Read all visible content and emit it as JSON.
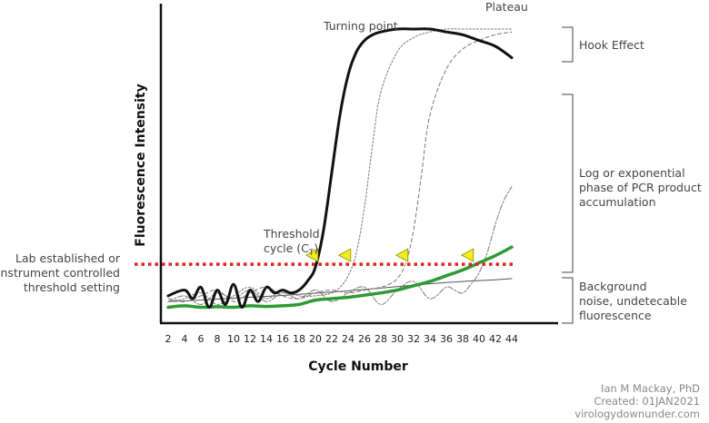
{
  "chart_data": {
    "type": "line",
    "xlabel": "Cycle Number",
    "ylabel": "Fluorescence Intensity",
    "x_ticks": [
      2,
      4,
      6,
      8,
      10,
      12,
      14,
      16,
      18,
      20,
      22,
      24,
      26,
      28,
      30,
      32,
      34,
      36,
      38,
      40,
      42,
      44
    ],
    "xlim": [
      1,
      45
    ],
    "ylim": [
      0,
      100
    ],
    "threshold_level": 18,
    "series": [
      {
        "style": "black-thick",
        "color": "#111111",
        "x": [
          2,
          4,
          5,
          6,
          7,
          8,
          9,
          10,
          11,
          12,
          13,
          14,
          15,
          16,
          17,
          18,
          19,
          20,
          21,
          22,
          23,
          24,
          25,
          26,
          27,
          28,
          30,
          32,
          34,
          36,
          38,
          40,
          42,
          44
        ],
        "y": [
          7,
          9,
          6,
          10,
          3,
          9,
          4,
          11,
          3,
          9,
          5,
          10,
          8,
          9,
          8,
          9,
          12,
          17,
          30,
          50,
          70,
          84,
          92,
          96,
          98,
          99,
          100,
          100,
          100,
          99,
          98,
          96,
          94,
          90
        ]
      },
      {
        "style": "grey-dotted",
        "color": "#777777",
        "x": [
          2,
          4,
          6,
          8,
          10,
          12,
          14,
          16,
          18,
          20,
          22,
          23,
          24,
          25,
          26,
          27,
          28,
          30,
          32,
          34,
          36,
          38,
          40,
          42,
          44
        ],
        "y": [
          5,
          6,
          8,
          4,
          7,
          10,
          6,
          9,
          7,
          7,
          8,
          10,
          14,
          22,
          38,
          60,
          78,
          92,
          97,
          99,
          100,
          100,
          100,
          100,
          100
        ]
      },
      {
        "style": "grey-dashed",
        "color": "#777777",
        "x": [
          2,
          4,
          6,
          8,
          10,
          12,
          14,
          16,
          18,
          20,
          22,
          24,
          26,
          28,
          29,
          30,
          31,
          32,
          33,
          34,
          36,
          38,
          40,
          42,
          44
        ],
        "y": [
          6,
          5,
          7,
          9,
          5,
          8,
          10,
          7,
          6,
          8,
          9,
          8,
          9,
          10,
          11,
          13,
          18,
          30,
          50,
          70,
          86,
          93,
          96,
          98,
          99
        ]
      },
      {
        "style": "grey-dashdot",
        "color": "#777777",
        "x": [
          2,
          4,
          6,
          8,
          10,
          12,
          14,
          16,
          18,
          20,
          22,
          24,
          26,
          28,
          30,
          32,
          34,
          36,
          37,
          38,
          39,
          40,
          41,
          42,
          43,
          44
        ],
        "y": [
          5,
          7,
          4,
          8,
          6,
          9,
          5,
          8,
          6,
          9,
          5,
          8,
          10,
          4,
          9,
          12,
          6,
          10,
          9,
          8,
          11,
          15,
          22,
          32,
          40,
          45
        ]
      },
      {
        "style": "green",
        "color": "#2e9a34",
        "x": [
          2,
          4,
          6,
          8,
          10,
          12,
          14,
          16,
          18,
          20,
          22,
          24,
          26,
          28,
          30,
          32,
          34,
          36,
          38,
          40,
          42,
          44
        ],
        "y": [
          3,
          3.5,
          3,
          3.2,
          3,
          3.5,
          3.3,
          3.5,
          4,
          5.5,
          6,
          6.5,
          7.2,
          8,
          9,
          10.5,
          12,
          14,
          16,
          18.5,
          21,
          24
        ]
      },
      {
        "style": "grey-baseline",
        "color": "#555555",
        "x": [
          2,
          6,
          10,
          14,
          18,
          22,
          26,
          30,
          34,
          38,
          42,
          44
        ],
        "y": [
          5,
          5.5,
          6.2,
          6.8,
          7.5,
          8.3,
          9.2,
          10.2,
          11.2,
          12,
          12.6,
          13
        ]
      }
    ],
    "threshold_markers_x": [
      20.2,
      24.2,
      31.2,
      39.2
    ],
    "annotations": {
      "turning_point": "Turning point",
      "plateau": "Plateau",
      "threshold_cycle_1": "Threshold",
      "threshold_cycle_2": "cycle (C",
      "threshold_cycle_sub": "T",
      "threshold_cycle_close": ")",
      "threshold_setting": [
        "Lab established or",
        "instrument controlled",
        "threshold setting"
      ],
      "hook_effect": "Hook Effect",
      "log_phase": [
        "Log or exponential",
        "phase of PCR product",
        "accumulation"
      ],
      "background": [
        "Background",
        "noise, undetecable",
        "fluorescence"
      ]
    },
    "colors": {
      "threshold_line": "#e02020",
      "marker_fill": "#f2ee1c",
      "marker_stroke": "#8a8a00"
    }
  },
  "credit": {
    "author": "Ian M Mackay, PhD",
    "created": "Created: 01JAN2021",
    "site": "virologydownunder.com"
  }
}
